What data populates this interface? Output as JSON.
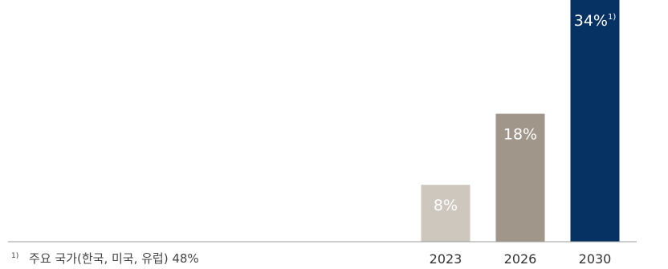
{
  "chart_data": {
    "type": "bar",
    "categories": [
      "2023",
      "2026",
      "2030"
    ],
    "values": [
      8,
      18,
      34
    ],
    "data_labels": [
      "8%",
      "18%",
      "34%"
    ],
    "data_label_notes": [
      "",
      "",
      "1)"
    ],
    "colors": [
      "#cec7bd",
      "#a0968a",
      "#063163"
    ],
    "unit": "%",
    "title": "",
    "xlabel": "",
    "ylabel": "",
    "ylim": [
      0,
      34
    ],
    "grid": false,
    "legend": "none"
  },
  "footnote": {
    "marker": "1)",
    "text": "주요 국가(한국, 미국, 유럽) 48%"
  },
  "colors": {
    "axis": "#9a9a9a",
    "text": "#333333"
  }
}
